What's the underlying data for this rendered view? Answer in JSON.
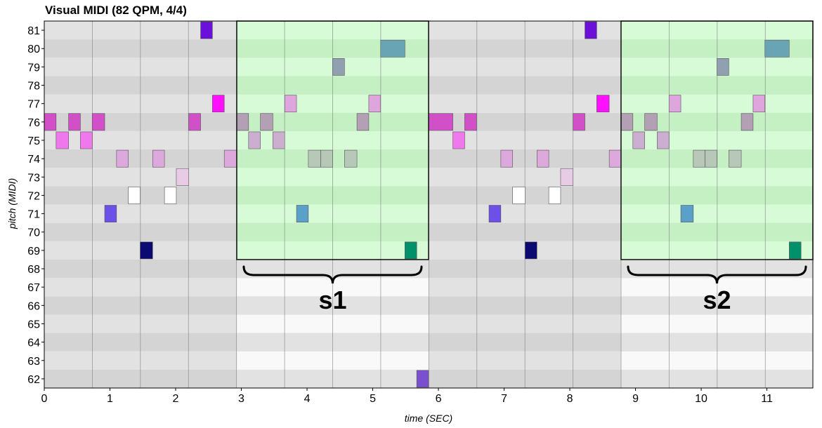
{
  "chart_data": {
    "type": "piano-roll",
    "title": "Visual MIDI (82 QPM, 4/4)",
    "xlabel": "time (SEC)",
    "ylabel": "pitch (MIDI)",
    "xlim": [
      0,
      11.7
    ],
    "ylim": [
      62,
      81
    ],
    "x_ticks": [
      0,
      1,
      2,
      3,
      4,
      5,
      6,
      7,
      8,
      9,
      10,
      11
    ],
    "beat_seconds": 0.7317,
    "notes": [
      {
        "start": 0.0,
        "end": 0.18,
        "pitch": 76,
        "color": "#d150c8"
      },
      {
        "start": 0.18,
        "end": 0.37,
        "pitch": 75,
        "color": "#ee78ec"
      },
      {
        "start": 0.37,
        "end": 0.55,
        "pitch": 76,
        "color": "#d150c8"
      },
      {
        "start": 0.55,
        "end": 0.73,
        "pitch": 75,
        "color": "#ee78ec"
      },
      {
        "start": 0.73,
        "end": 0.92,
        "pitch": 76,
        "color": "#d150c8"
      },
      {
        "start": 0.92,
        "end": 1.1,
        "pitch": 71,
        "color": "#6c50e8"
      },
      {
        "start": 1.1,
        "end": 1.28,
        "pitch": 74,
        "color": "#dda8dc"
      },
      {
        "start": 1.28,
        "end": 1.46,
        "pitch": 72,
        "color": "#ffffff"
      },
      {
        "start": 1.46,
        "end": 1.65,
        "pitch": 69,
        "color": "#0a0a70"
      },
      {
        "start": 1.65,
        "end": 1.83,
        "pitch": 74,
        "color": "#dda8dc"
      },
      {
        "start": 1.83,
        "end": 2.01,
        "pitch": 72,
        "color": "#ffffff"
      },
      {
        "start": 2.01,
        "end": 2.2,
        "pitch": 73,
        "color": "#e8cce6"
      },
      {
        "start": 2.2,
        "end": 2.38,
        "pitch": 76,
        "color": "#d150c8"
      },
      {
        "start": 2.38,
        "end": 2.56,
        "pitch": 81,
        "color": "#6a10d8"
      },
      {
        "start": 2.56,
        "end": 2.74,
        "pitch": 77,
        "color": "#ff10ff"
      },
      {
        "start": 2.74,
        "end": 2.93,
        "pitch": 74,
        "color": "#dda8dc"
      },
      {
        "start": 2.93,
        "end": 3.11,
        "pitch": 76,
        "color": "#b4a0b4"
      },
      {
        "start": 3.11,
        "end": 3.29,
        "pitch": 75,
        "color": "#ccaed0"
      },
      {
        "start": 3.29,
        "end": 3.48,
        "pitch": 76,
        "color": "#b4a0b4"
      },
      {
        "start": 3.48,
        "end": 3.66,
        "pitch": 75,
        "color": "#ccaed0"
      },
      {
        "start": 3.66,
        "end": 3.84,
        "pitch": 77,
        "color": "#dea6dc"
      },
      {
        "start": 3.84,
        "end": 4.02,
        "pitch": 71,
        "color": "#5aa0c8"
      },
      {
        "start": 4.02,
        "end": 4.21,
        "pitch": 74,
        "color": "#b8c8b8"
      },
      {
        "start": 4.21,
        "end": 4.39,
        "pitch": 74,
        "color": "#b8c8b8"
      },
      {
        "start": 4.39,
        "end": 4.57,
        "pitch": 79,
        "color": "#90a0b0"
      },
      {
        "start": 4.57,
        "end": 4.76,
        "pitch": 74,
        "color": "#b8c8b8"
      },
      {
        "start": 4.76,
        "end": 4.94,
        "pitch": 76,
        "color": "#b4a0b4"
      },
      {
        "start": 4.94,
        "end": 5.12,
        "pitch": 77,
        "color": "#dea6dc"
      },
      {
        "start": 5.12,
        "end": 5.49,
        "pitch": 80,
        "color": "#68a4b4"
      },
      {
        "start": 5.49,
        "end": 5.67,
        "pitch": 69,
        "color": "#00906a"
      },
      {
        "start": 5.67,
        "end": 5.85,
        "pitch": 62,
        "color": "#7a50d0"
      },
      {
        "start": 5.85,
        "end": 6.22,
        "pitch": 76,
        "color": "#d150c8"
      },
      {
        "start": 6.22,
        "end": 6.4,
        "pitch": 75,
        "color": "#ee78ec"
      },
      {
        "start": 6.4,
        "end": 6.58,
        "pitch": 76,
        "color": "#d150c8"
      },
      {
        "start": 6.77,
        "end": 6.95,
        "pitch": 71,
        "color": "#6c50e8"
      },
      {
        "start": 6.95,
        "end": 7.13,
        "pitch": 74,
        "color": "#dda8dc"
      },
      {
        "start": 7.13,
        "end": 7.32,
        "pitch": 72,
        "color": "#ffffff"
      },
      {
        "start": 7.32,
        "end": 7.5,
        "pitch": 69,
        "color": "#0a0a70"
      },
      {
        "start": 7.5,
        "end": 7.68,
        "pitch": 74,
        "color": "#dda8dc"
      },
      {
        "start": 7.68,
        "end": 7.86,
        "pitch": 72,
        "color": "#ffffff"
      },
      {
        "start": 7.86,
        "end": 8.05,
        "pitch": 73,
        "color": "#e8cce6"
      },
      {
        "start": 8.05,
        "end": 8.23,
        "pitch": 76,
        "color": "#d150c8"
      },
      {
        "start": 8.23,
        "end": 8.41,
        "pitch": 81,
        "color": "#6a10d8"
      },
      {
        "start": 8.41,
        "end": 8.6,
        "pitch": 77,
        "color": "#ff10ff"
      },
      {
        "start": 8.6,
        "end": 8.78,
        "pitch": 74,
        "color": "#dda8dc"
      },
      {
        "start": 8.78,
        "end": 8.96,
        "pitch": 76,
        "color": "#b4a0b4"
      },
      {
        "start": 8.96,
        "end": 9.14,
        "pitch": 75,
        "color": "#ccaed0"
      },
      {
        "start": 9.14,
        "end": 9.33,
        "pitch": 76,
        "color": "#b4a0b4"
      },
      {
        "start": 9.33,
        "end": 9.51,
        "pitch": 75,
        "color": "#ccaed0"
      },
      {
        "start": 9.51,
        "end": 9.69,
        "pitch": 77,
        "color": "#dea6dc"
      },
      {
        "start": 9.69,
        "end": 9.88,
        "pitch": 71,
        "color": "#5aa0c8"
      },
      {
        "start": 9.88,
        "end": 10.06,
        "pitch": 74,
        "color": "#b8c8b8"
      },
      {
        "start": 10.06,
        "end": 10.24,
        "pitch": 74,
        "color": "#b8c8b8"
      },
      {
        "start": 10.24,
        "end": 10.42,
        "pitch": 79,
        "color": "#90a0b0"
      },
      {
        "start": 10.42,
        "end": 10.61,
        "pitch": 74,
        "color": "#b8c8b8"
      },
      {
        "start": 10.61,
        "end": 10.79,
        "pitch": 76,
        "color": "#b4a0b4"
      },
      {
        "start": 10.79,
        "end": 10.97,
        "pitch": 77,
        "color": "#dea6dc"
      },
      {
        "start": 10.97,
        "end": 11.34,
        "pitch": 80,
        "color": "#68a4b4"
      },
      {
        "start": 11.34,
        "end": 11.52,
        "pitch": 69,
        "color": "#00906a"
      }
    ],
    "sections": [
      {
        "label": "s1",
        "start": 2.93,
        "end": 5.85,
        "pitch_low": 69,
        "pitch_high": 81
      },
      {
        "label": "s2",
        "start": 8.78,
        "end": 11.7,
        "pitch_low": 69,
        "pitch_high": 81
      }
    ],
    "colors": {
      "section_fill": "#c8f8c8",
      "row_dark": "#d4d4d4",
      "row_light": "#e4e4e4",
      "lower_row_dark": "#e2e2e2",
      "lower_row_light": "#f9f9f9",
      "beat_line": "#7a7a7a",
      "section_border": "#1a1a1a"
    }
  }
}
